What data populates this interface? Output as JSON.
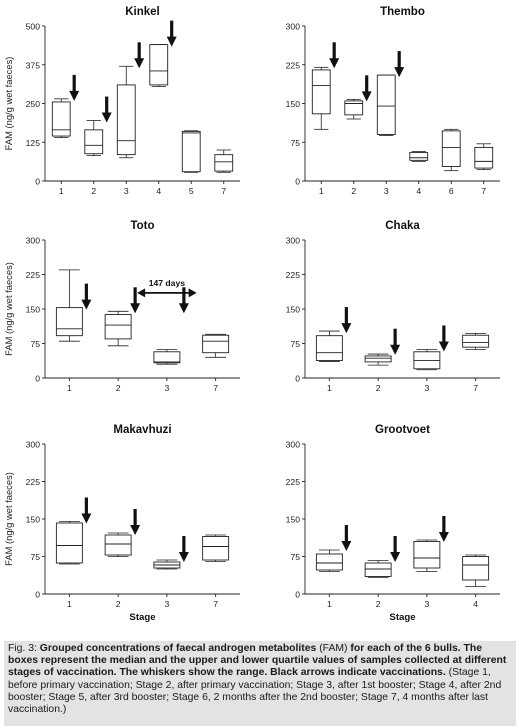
{
  "chart_data": [
    {
      "type": "box",
      "title": "Kinkel",
      "ylabel": "FAM (ng/g wet faeces)",
      "xlabel": "",
      "ylim": [
        0,
        500
      ],
      "yticks": [
        "0",
        "125",
        "250",
        "375",
        "500"
      ],
      "categories": [
        "1",
        "2",
        "3",
        "4",
        "5",
        "7"
      ],
      "boxes": [
        {
          "min": 140,
          "q1": 145,
          "median": 165,
          "q3": 255,
          "max": 265
        },
        {
          "min": 82,
          "q1": 88,
          "median": 115,
          "q3": 165,
          "max": 195
        },
        {
          "min": 75,
          "q1": 85,
          "median": 130,
          "q3": 310,
          "max": 370
        },
        {
          "min": 305,
          "q1": 310,
          "median": 355,
          "q3": 440,
          "max": 440
        },
        {
          "min": 28,
          "q1": 30,
          "median": 155,
          "q3": 160,
          "max": 162
        },
        {
          "min": 28,
          "q1": 32,
          "median": 62,
          "q3": 85,
          "max": 100
        }
      ],
      "arrows": [
        {
          "stage": "1",
          "value": 265
        },
        {
          "stage": "2",
          "value": 195
        },
        {
          "stage": "3",
          "value": 370
        },
        {
          "stage": "4",
          "value": 440
        }
      ]
    },
    {
      "type": "box",
      "title": "Thembo",
      "ylabel": "",
      "xlabel": "",
      "ylim": [
        0,
        300
      ],
      "yticks": [
        "0",
        "75",
        "150",
        "225",
        "300"
      ],
      "categories": [
        "1",
        "2",
        "3",
        "4",
        "6",
        "7"
      ],
      "boxes": [
        {
          "min": 100,
          "q1": 130,
          "median": 185,
          "q3": 215,
          "max": 220
        },
        {
          "min": 120,
          "q1": 128,
          "median": 150,
          "q3": 155,
          "max": 158
        },
        {
          "min": 88,
          "q1": 90,
          "median": 145,
          "q3": 205,
          "max": 205
        },
        {
          "min": 38,
          "q1": 40,
          "median": 45,
          "q3": 55,
          "max": 57
        },
        {
          "min": 20,
          "q1": 28,
          "median": 65,
          "q3": 97,
          "max": 100
        },
        {
          "min": 22,
          "q1": 25,
          "median": 38,
          "q3": 65,
          "max": 72
        }
      ],
      "arrows": [
        {
          "stage": "1",
          "value": 222
        },
        {
          "stage": "2",
          "value": 158
        },
        {
          "stage": "3",
          "value": 205
        }
      ]
    },
    {
      "type": "box",
      "title": "Toto",
      "ylabel": "FAM (ng/g wet faeces)",
      "xlabel": "",
      "ylim": [
        0,
        300
      ],
      "yticks": [
        "0",
        "75",
        "150",
        "225",
        "300"
      ],
      "categories": [
        "1",
        "2",
        "3",
        "7"
      ],
      "boxes": [
        {
          "min": 80,
          "q1": 92,
          "median": 107,
          "q3": 153,
          "max": 235
        },
        {
          "min": 70,
          "q1": 85,
          "median": 115,
          "q3": 138,
          "max": 145
        },
        {
          "min": 30,
          "q1": 33,
          "median": 35,
          "q3": 57,
          "max": 62
        },
        {
          "min": 45,
          "q1": 55,
          "median": 80,
          "q3": 93,
          "max": 95
        }
      ],
      "arrows": [
        {
          "stage": "1",
          "value": 153
        },
        {
          "stage": "2",
          "value": 145
        },
        {
          "stage": "3",
          "value": 145
        }
      ],
      "interval_label": "147 days"
    },
    {
      "type": "box",
      "title": "Chaka",
      "ylabel": "",
      "xlabel": "",
      "ylim": [
        0,
        300
      ],
      "yticks": [
        "0",
        "75",
        "150",
        "225",
        "300"
      ],
      "categories": [
        "1",
        "2",
        "3",
        "7"
      ],
      "boxes": [
        {
          "min": 36,
          "q1": 38,
          "median": 55,
          "q3": 92,
          "max": 102
        },
        {
          "min": 28,
          "q1": 35,
          "median": 43,
          "q3": 48,
          "max": 52
        },
        {
          "min": 18,
          "q1": 20,
          "median": 38,
          "q3": 57,
          "max": 62
        },
        {
          "min": 62,
          "q1": 67,
          "median": 77,
          "q3": 93,
          "max": 97
        }
      ],
      "arrows": [
        {
          "stage": "1",
          "value": 102
        },
        {
          "stage": "2",
          "value": 55
        },
        {
          "stage": "3",
          "value": 62
        }
      ]
    },
    {
      "type": "box",
      "title": "Makavhuzi",
      "ylabel": "FAM (ng/g wet faeces)",
      "xlabel": "Stage",
      "ylim": [
        0,
        300
      ],
      "yticks": [
        "0",
        "75",
        "150",
        "225",
        "300"
      ],
      "categories": [
        "1",
        "2",
        "3",
        "7"
      ],
      "boxes": [
        {
          "min": 60,
          "q1": 62,
          "median": 97,
          "q3": 142,
          "max": 145
        },
        {
          "min": 75,
          "q1": 78,
          "median": 100,
          "q3": 118,
          "max": 122
        },
        {
          "min": 50,
          "q1": 52,
          "median": 58,
          "q3": 64,
          "max": 68
        },
        {
          "min": 65,
          "q1": 68,
          "median": 95,
          "q3": 115,
          "max": 118
        }
      ],
      "arrows": [
        {
          "stage": "1",
          "value": 145
        },
        {
          "stage": "2",
          "value": 122
        },
        {
          "stage": "3",
          "value": 68
        }
      ]
    },
    {
      "type": "box",
      "title": "Grootvoet",
      "ylabel": "",
      "xlabel": "Stage",
      "ylim": [
        0,
        300
      ],
      "yticks": [
        "0",
        "75",
        "150",
        "225",
        "300"
      ],
      "categories": [
        "1",
        "2",
        "3",
        "4"
      ],
      "boxes": [
        {
          "min": 45,
          "q1": 48,
          "median": 62,
          "q3": 80,
          "max": 88
        },
        {
          "min": 33,
          "q1": 35,
          "median": 50,
          "q3": 62,
          "max": 67
        },
        {
          "min": 45,
          "q1": 52,
          "median": 72,
          "q3": 105,
          "max": 108
        },
        {
          "min": 15,
          "q1": 28,
          "median": 58,
          "q3": 75,
          "max": 78
        }
      ],
      "arrows": [
        {
          "stage": "1",
          "value": 90
        },
        {
          "stage": "2",
          "value": 68
        },
        {
          "stage": "3",
          "value": 108
        }
      ]
    }
  ],
  "caption": {
    "lead": "Fig. 3: ",
    "bold": "Grouped concentrations of faecal androgen metabolites ",
    "abbrev": "(FAM) ",
    "bold2": "for each of the 6 bulls. The boxes represent the median and the upper and lower quartile values of samples collected at different stages of vaccination. The whiskers show the range. Black arrows indicate vaccinations. ",
    "tail": "(Stage 1, before primary vaccination; Stage 2, after primary vaccination; Stage 3, after 1st booster; Stage 4, after 2nd booster; Stage 5, after 3rd booster; Stage 6, 2 months after the 2nd booster; Stage 7, 4 months after last vaccination.)"
  }
}
